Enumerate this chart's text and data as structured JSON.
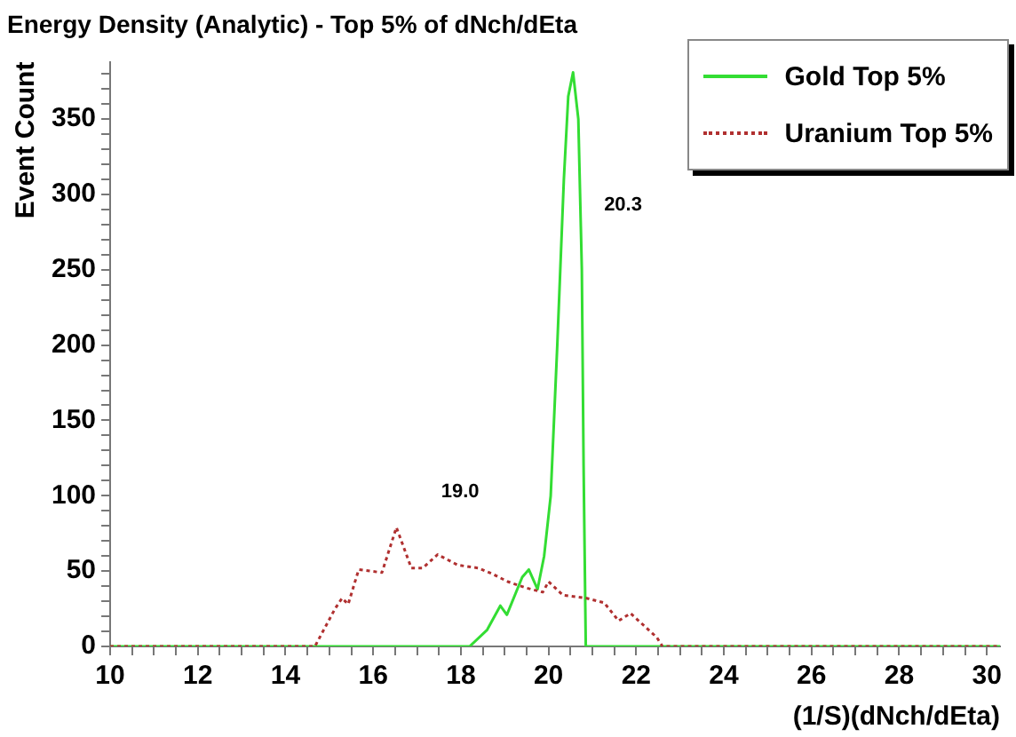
{
  "chart_data": {
    "type": "line",
    "title": "Energy Density (Analytic) - Top 5% of dNch/dEta",
    "xlabel": "(1/S)(dNch/dEta)",
    "ylabel": "Event Count",
    "xlim": [
      10,
      30.3
    ],
    "ylim": [
      0,
      388
    ],
    "xticks": [
      10,
      {
        "value": 10.5,
        "label": null
      },
      {
        "value": 11,
        "label": null
      },
      {
        "value": 11.5,
        "label": null
      },
      12,
      {
        "value": 12.5,
        "label": null
      },
      {
        "value": 13,
        "label": null
      },
      {
        "value": 13.5,
        "label": null
      },
      14,
      {
        "value": 14.5,
        "label": null
      },
      {
        "value": 15,
        "label": null
      },
      {
        "value": 15.5,
        "label": null
      },
      16,
      {
        "value": 16.5,
        "label": null
      },
      {
        "value": 17,
        "label": null
      },
      {
        "value": 17.5,
        "label": null
      },
      18,
      {
        "value": 18.5,
        "label": null
      },
      {
        "value": 19,
        "label": null
      },
      {
        "value": 19.5,
        "label": null
      },
      20,
      {
        "value": 20.5,
        "label": null
      },
      {
        "value": 21,
        "label": null
      },
      {
        "value": 21.5,
        "label": null
      },
      22,
      {
        "value": 22.5,
        "label": null
      },
      {
        "value": 23,
        "label": null
      },
      {
        "value": 23.5,
        "label": null
      },
      24,
      {
        "value": 24.5,
        "label": null
      },
      {
        "value": 25,
        "label": null
      },
      {
        "value": 25.5,
        "label": null
      },
      26,
      {
        "value": 26.5,
        "label": null
      },
      {
        "value": 27,
        "label": null
      },
      {
        "value": 27.5,
        "label": null
      },
      28,
      {
        "value": 28.5,
        "label": null
      },
      {
        "value": 29,
        "label": null
      },
      {
        "value": 29.5,
        "label": null
      },
      30
    ],
    "yticks": [
      0,
      {
        "value": 10,
        "label": null
      },
      {
        "value": 20,
        "label": null
      },
      {
        "value": 30,
        "label": null
      },
      {
        "value": 40,
        "label": null
      },
      50,
      {
        "value": 60,
        "label": null
      },
      {
        "value": 70,
        "label": null
      },
      {
        "value": 80,
        "label": null
      },
      {
        "value": 90,
        "label": null
      },
      100,
      {
        "value": 110,
        "label": null
      },
      {
        "value": 120,
        "label": null
      },
      {
        "value": 130,
        "label": null
      },
      {
        "value": 140,
        "label": null
      },
      150,
      {
        "value": 160,
        "label": null
      },
      {
        "value": 170,
        "label": null
      },
      {
        "value": 180,
        "label": null
      },
      {
        "value": 190,
        "label": null
      },
      200,
      {
        "value": 210,
        "label": null
      },
      {
        "value": 220,
        "label": null
      },
      {
        "value": 230,
        "label": null
      },
      {
        "value": 240,
        "label": null
      },
      250,
      {
        "value": 260,
        "label": null
      },
      {
        "value": 270,
        "label": null
      },
      {
        "value": 280,
        "label": null
      },
      {
        "value": 290,
        "label": null
      },
      300,
      {
        "value": 310,
        "label": null
      },
      {
        "value": 320,
        "label": null
      },
      {
        "value": 330,
        "label": null
      },
      {
        "value": 340,
        "label": null
      },
      350,
      {
        "value": 360,
        "label": null
      },
      {
        "value": 370,
        "label": null
      },
      {
        "value": 380,
        "label": null
      }
    ],
    "grid": false,
    "legend": "top right",
    "marker": "none",
    "series": [
      {
        "name": "Gold Top 5%",
        "color": "#33dd33",
        "line_style": "solid",
        "x": [
          10,
          18.2,
          18.6,
          18.9,
          19.05,
          19.4,
          19.55,
          19.75,
          19.9,
          20.05,
          20.2,
          20.35,
          20.45,
          20.56,
          20.68,
          20.76,
          20.8,
          20.85,
          21.1,
          30.3
        ],
        "values": [
          0,
          0,
          11,
          27,
          21,
          46,
          51,
          38,
          60,
          100,
          200,
          310,
          365,
          381,
          350,
          250,
          120,
          0,
          0,
          0
        ]
      },
      {
        "name": "Uranium Top 5%",
        "color": "#b03030",
        "line_style": "dotted",
        "x": [
          10,
          14.67,
          15.13,
          15.29,
          15.43,
          15.67,
          16.2,
          16.53,
          16.87,
          17.13,
          17.47,
          17.93,
          18.4,
          18.73,
          19.07,
          19.47,
          19.87,
          20.0,
          20.33,
          20.87,
          21.27,
          21.6,
          21.87,
          22.47,
          22.6,
          30.3
        ],
        "values": [
          0,
          0,
          25,
          32,
          28,
          51,
          49,
          79,
          52,
          52,
          61,
          54,
          52,
          48,
          43,
          39,
          36,
          43,
          34,
          32,
          29,
          17,
          22,
          6,
          0,
          0
        ]
      }
    ],
    "annotations": [
      "19.0",
      "20.3"
    ]
  }
}
